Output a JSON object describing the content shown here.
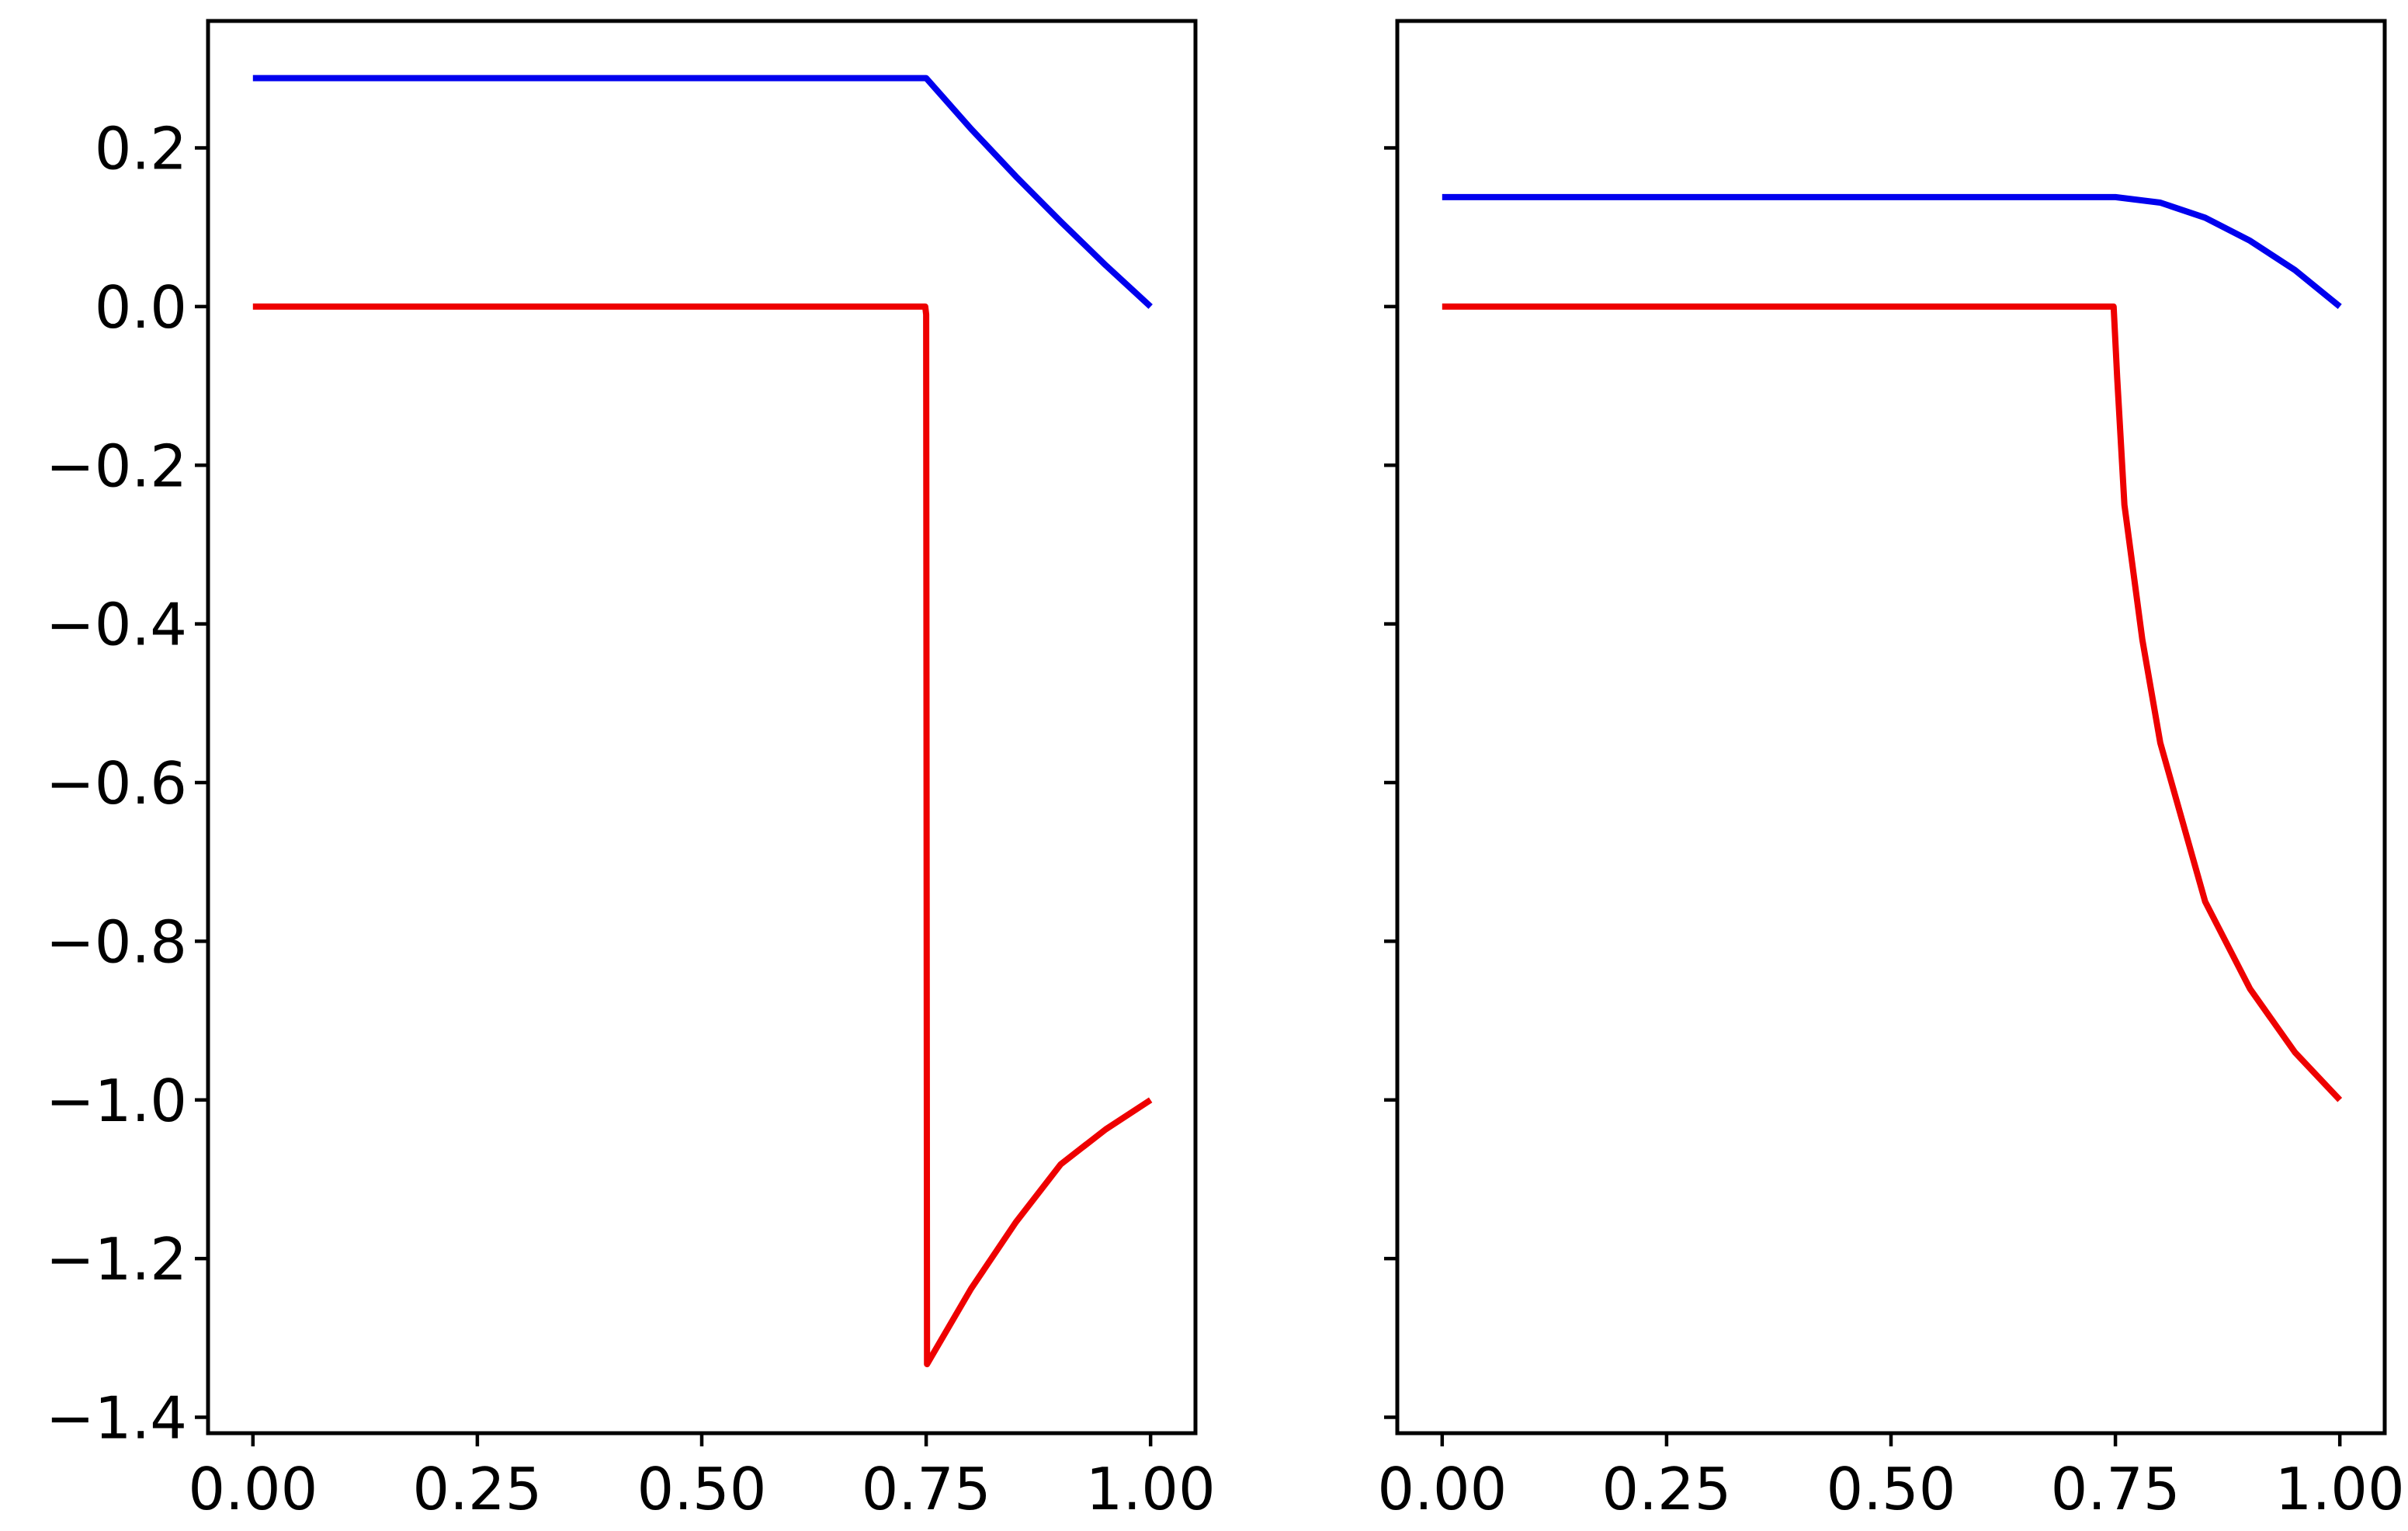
{
  "chart_data": [
    {
      "type": "line",
      "xlim": [
        -0.05,
        1.05
      ],
      "ylim": [
        -1.42,
        0.36
      ],
      "xticks": [
        0.0,
        0.25,
        0.5,
        0.75,
        1.0
      ],
      "xtick_labels": [
        "0.00",
        "0.25",
        "0.50",
        "0.75",
        "1.00"
      ],
      "yticks": [
        0.2,
        0.0,
        -0.2,
        -0.4,
        -0.6,
        -0.8,
        -1.0,
        -1.2,
        -1.4
      ],
      "ytick_labels": [
        "0.2",
        "0.0",
        "−0.2",
        "−0.4",
        "−0.6",
        "−0.8",
        "−1.0",
        "−1.2",
        "−1.4"
      ],
      "grid": false,
      "series": [
        {
          "color": "#0000ee",
          "x": [
            0.0,
            0.75,
            0.8,
            0.85,
            0.9,
            0.95,
            1.0
          ],
          "y": [
            0.288,
            0.288,
            0.224,
            0.164,
            0.107,
            0.052,
            0.0
          ]
        },
        {
          "color": "#ee0000",
          "x": [
            0.0,
            0.749,
            0.75,
            0.751,
            0.8,
            0.85,
            0.9,
            0.95,
            1.0
          ],
          "y": [
            0.0,
            0.0,
            -0.01,
            -1.333,
            -1.238,
            -1.154,
            -1.081,
            -1.037,
            -1.0
          ]
        }
      ]
    },
    {
      "type": "line",
      "xlim": [
        -0.05,
        1.05
      ],
      "ylim": [
        -1.42,
        0.36
      ],
      "xticks": [
        0.0,
        0.25,
        0.5,
        0.75,
        1.0
      ],
      "xtick_labels": [
        "0.00",
        "0.25",
        "0.50",
        "0.75",
        "1.00"
      ],
      "yticks": [
        0.2,
        0.0,
        -0.2,
        -0.4,
        -0.6,
        -0.8,
        -1.0,
        -1.2,
        -1.4
      ],
      "ytick_labels": [],
      "grid": false,
      "series": [
        {
          "color": "#0000ee",
          "x": [
            0.0,
            0.75,
            0.8,
            0.85,
            0.9,
            0.95,
            1.0
          ],
          "y": [
            0.138,
            0.138,
            0.131,
            0.112,
            0.083,
            0.046,
            0.0
          ]
        },
        {
          "color": "#ee0000",
          "x": [
            0.0,
            0.748,
            0.752,
            0.76,
            0.78,
            0.8,
            0.85,
            0.9,
            0.95,
            1.0
          ],
          "y": [
            0.0,
            0.0,
            -0.09,
            -0.25,
            -0.42,
            -0.55,
            -0.75,
            -0.86,
            -0.94,
            -1.0
          ]
        }
      ]
    }
  ]
}
